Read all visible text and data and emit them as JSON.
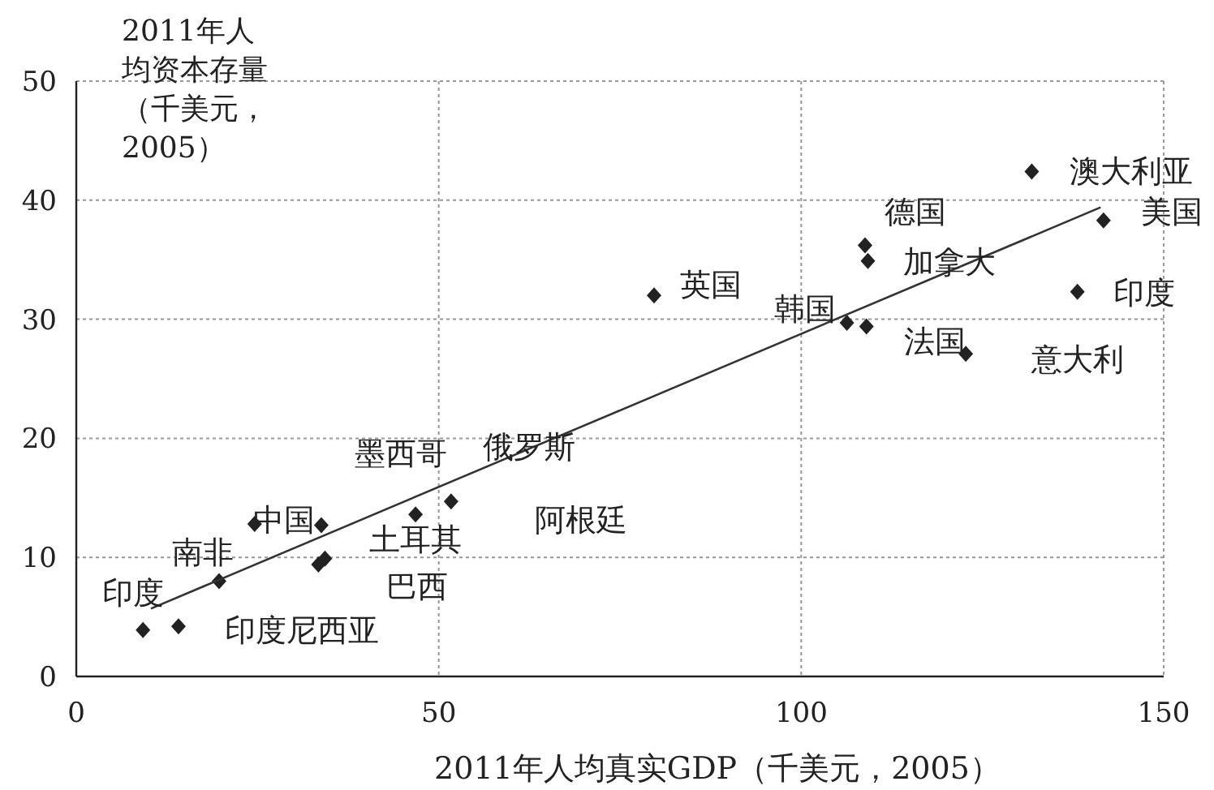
{
  "chart_data": {
    "type": "scatter",
    "ylabel": "2011年人均资本存量（千美元，2005）",
    "xlabel": "2011年人均真实GDP（千美元，2005）",
    "xlim": [
      0,
      150
    ],
    "ylim": [
      0,
      50
    ],
    "xticks": [
      0,
      50,
      100,
      150
    ],
    "yticks": [
      0,
      10,
      20,
      30,
      40,
      50
    ],
    "grid": true,
    "series": [
      {
        "type": "scatter",
        "marker": "diamond",
        "color": "#222222",
        "x": [
          9.2,
          14.1,
          19.7,
          24.6,
          33.8,
          33.4,
          34.3,
          46.8,
          51.7,
          79.7,
          106.3,
          109,
          108.8,
          109.2,
          122.7,
          131.8,
          141.7,
          138.1
        ],
        "values": [
          3.9,
          4.2,
          8.0,
          12.8,
          12.7,
          9.4,
          9.9,
          13.6,
          14.7,
          32.0,
          29.7,
          29.4,
          36.2,
          34.9,
          27.1,
          42.4,
          38.3,
          32.3
        ]
      },
      {
        "type": "line",
        "color": "#333333",
        "x": [
          10.3,
          141.3
        ],
        "values": [
          5.7,
          39.4
        ]
      }
    ],
    "annotations": [
      "印度",
      "印度尼西亚",
      "南非",
      "中国",
      "墨西哥",
      "俄罗斯",
      "土耳其",
      "阿根廷",
      "巴西",
      "英国",
      "韩国",
      "德国",
      "加拿大",
      "法国",
      "意大利",
      "澳大利亚",
      "美国",
      "印度"
    ]
  }
}
